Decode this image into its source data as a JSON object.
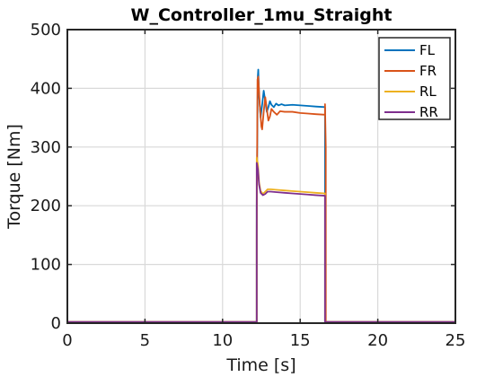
{
  "chart_data": {
    "type": "line",
    "title": "W_Controller_1mu_Straight",
    "xlabel": "Time [s]",
    "ylabel": "Torque [Nm]",
    "xlim": [
      0,
      25
    ],
    "ylim": [
      0,
      500
    ],
    "xticks": [
      0,
      5,
      10,
      15,
      20,
      25
    ],
    "yticks": [
      0,
      100,
      200,
      300,
      400,
      500
    ],
    "grid": true,
    "legend_position": "top-right",
    "series": [
      {
        "name": "FL",
        "color": "#0072BD",
        "points": [
          [
            0,
            2
          ],
          [
            12.2,
            2
          ],
          [
            12.2,
            200
          ],
          [
            12.27,
            420
          ],
          [
            12.3,
            432
          ],
          [
            12.35,
            390
          ],
          [
            12.45,
            350
          ],
          [
            12.55,
            372
          ],
          [
            12.65,
            396
          ],
          [
            12.75,
            378
          ],
          [
            12.85,
            360
          ],
          [
            12.95,
            368
          ],
          [
            13.05,
            378
          ],
          [
            13.15,
            372
          ],
          [
            13.3,
            368
          ],
          [
            13.45,
            374
          ],
          [
            13.6,
            371
          ],
          [
            13.8,
            373
          ],
          [
            14.0,
            371
          ],
          [
            14.5,
            372
          ],
          [
            15.0,
            371
          ],
          [
            15.5,
            370
          ],
          [
            16.0,
            369
          ],
          [
            16.6,
            368
          ],
          [
            16.6,
            2
          ],
          [
            25,
            2
          ]
        ]
      },
      {
        "name": "FR",
        "color": "#D95319",
        "points": [
          [
            0,
            2
          ],
          [
            12.2,
            2
          ],
          [
            12.2,
            150
          ],
          [
            12.25,
            415
          ],
          [
            12.3,
            420
          ],
          [
            12.4,
            370
          ],
          [
            12.5,
            335
          ],
          [
            12.55,
            330
          ],
          [
            12.65,
            360
          ],
          [
            12.75,
            385
          ],
          [
            12.85,
            365
          ],
          [
            12.95,
            345
          ],
          [
            13.05,
            352
          ],
          [
            13.15,
            365
          ],
          [
            13.3,
            360
          ],
          [
            13.5,
            355
          ],
          [
            13.7,
            361
          ],
          [
            14.0,
            360
          ],
          [
            14.5,
            360
          ],
          [
            15.0,
            358
          ],
          [
            15.5,
            357
          ],
          [
            16.0,
            356
          ],
          [
            16.6,
            355
          ],
          [
            16.6,
            373
          ],
          [
            16.65,
            300
          ],
          [
            16.65,
            2
          ],
          [
            25,
            2
          ]
        ]
      },
      {
        "name": "RL",
        "color": "#EDB120",
        "points": [
          [
            0,
            2
          ],
          [
            12.2,
            2
          ],
          [
            12.2,
            282
          ],
          [
            12.28,
            270
          ],
          [
            12.35,
            240
          ],
          [
            12.45,
            225
          ],
          [
            12.6,
            220
          ],
          [
            12.75,
            224
          ],
          [
            12.9,
            228
          ],
          [
            13.1,
            228
          ],
          [
            13.5,
            227
          ],
          [
            14.0,
            226
          ],
          [
            14.5,
            225
          ],
          [
            15.0,
            224
          ],
          [
            15.5,
            223
          ],
          [
            16.0,
            222
          ],
          [
            16.6,
            221
          ],
          [
            16.6,
            2
          ],
          [
            25,
            2
          ]
        ]
      },
      {
        "name": "RR",
        "color": "#7E2F8E",
        "points": [
          [
            0,
            2
          ],
          [
            12.2,
            2
          ],
          [
            12.2,
            273
          ],
          [
            12.28,
            262
          ],
          [
            12.35,
            236
          ],
          [
            12.45,
            222
          ],
          [
            12.6,
            218
          ],
          [
            12.75,
            220
          ],
          [
            12.9,
            224
          ],
          [
            13.1,
            224
          ],
          [
            13.5,
            223
          ],
          [
            14.0,
            222
          ],
          [
            14.5,
            221
          ],
          [
            15.0,
            220
          ],
          [
            15.5,
            219
          ],
          [
            16.0,
            218
          ],
          [
            16.6,
            217
          ],
          [
            16.6,
            2
          ],
          [
            25,
            2
          ]
        ]
      }
    ]
  }
}
